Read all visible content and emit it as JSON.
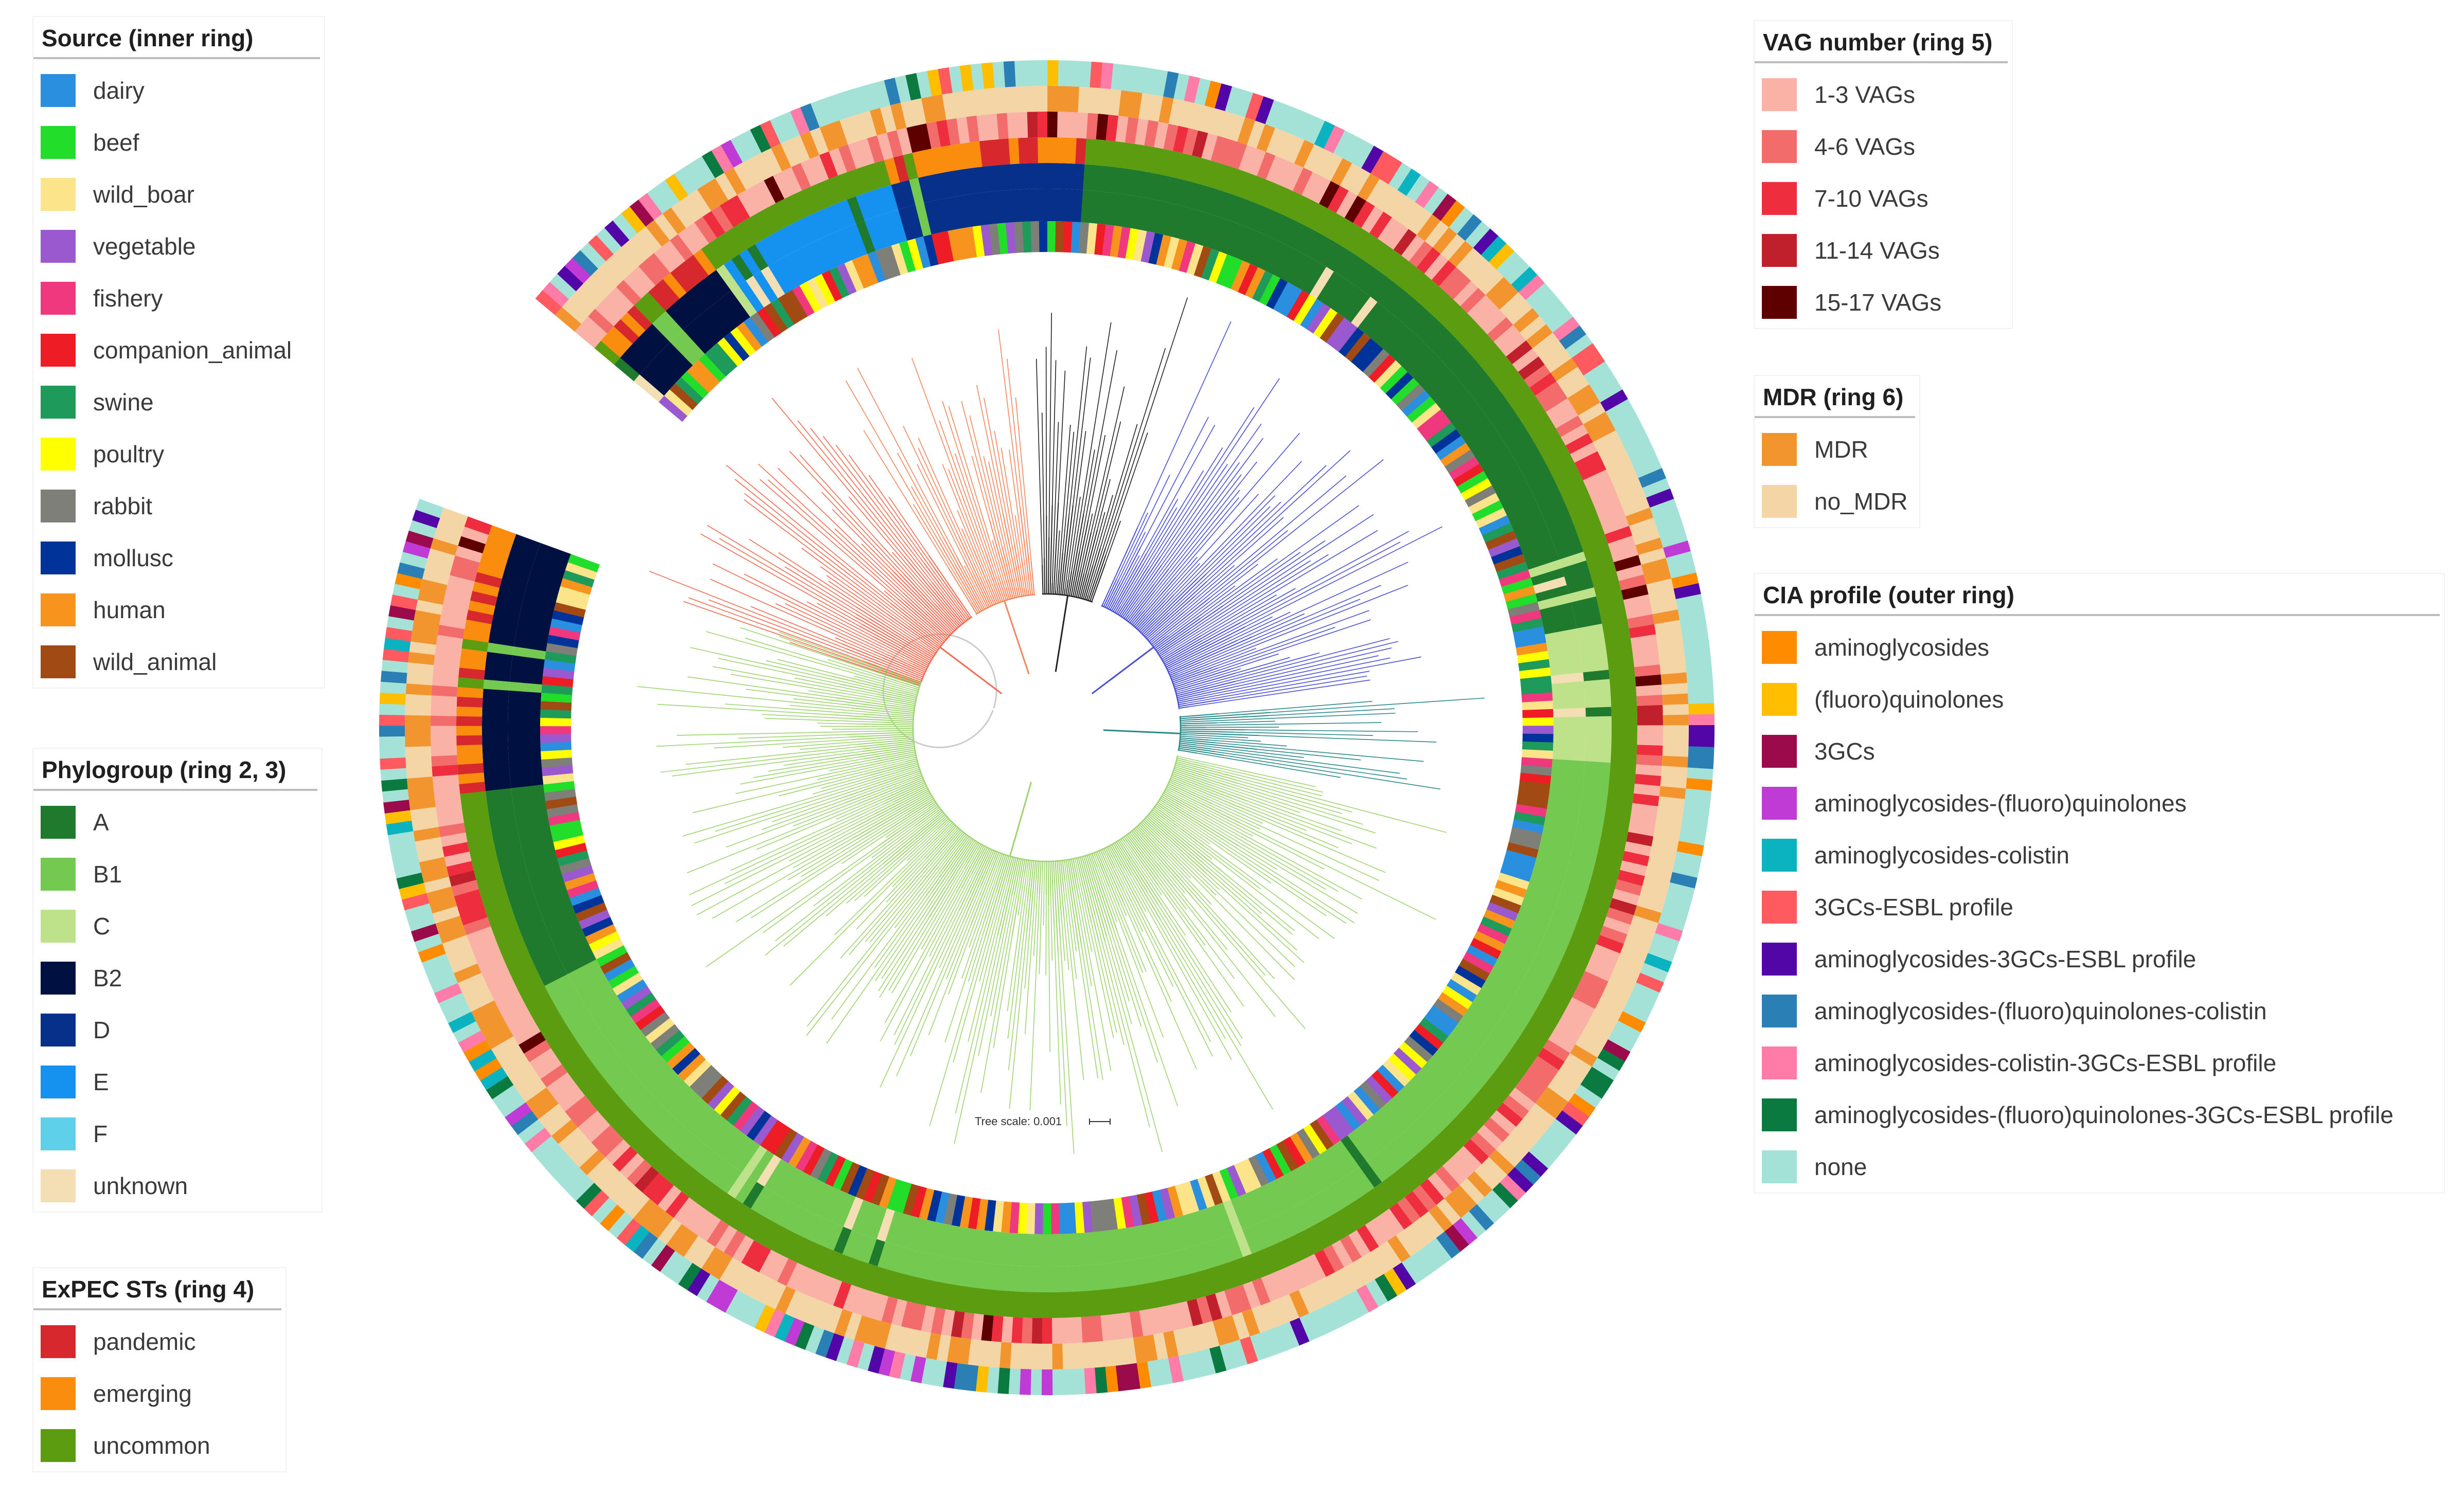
{
  "legends": {
    "source": {
      "title": "Source (inner ring)",
      "items": [
        {
          "label": "dairy",
          "color": "#2b8fe0"
        },
        {
          "label": "beef",
          "color": "#22dd2a"
        },
        {
          "label": "wild_boar",
          "color": "#fce48a"
        },
        {
          "label": "vegetable",
          "color": "#9b59d0"
        },
        {
          "label": "fishery",
          "color": "#f0387e"
        },
        {
          "label": "companion_animal",
          "color": "#ee1c25"
        },
        {
          "label": "swine",
          "color": "#1e9a5a"
        },
        {
          "label": "poultry",
          "color": "#ffff00"
        },
        {
          "label": "rabbit",
          "color": "#7f7f7a"
        },
        {
          "label": "mollusc",
          "color": "#003399"
        },
        {
          "label": "human",
          "color": "#f7941d"
        },
        {
          "label": "wild_animal",
          "color": "#a14a14"
        }
      ]
    },
    "phylogroup": {
      "title": "Phylogroup (ring 2, 3)",
      "items": [
        {
          "label": "A",
          "color": "#1f7a2d"
        },
        {
          "label": "B1",
          "color": "#74c950"
        },
        {
          "label": "C",
          "color": "#bde28a"
        },
        {
          "label": "B2",
          "color": "#001040"
        },
        {
          "label": "D",
          "color": "#06308a"
        },
        {
          "label": "E",
          "color": "#1592f0"
        },
        {
          "label": "F",
          "color": "#5fd0ea"
        },
        {
          "label": "unknown",
          "color": "#f4dfb4"
        }
      ]
    },
    "expec": {
      "title": "ExPEC STs (ring 4)",
      "items": [
        {
          "label": "pandemic",
          "color": "#d6282d"
        },
        {
          "label": "emerging",
          "color": "#fa8c0e"
        },
        {
          "label": "uncommon",
          "color": "#5c9c10"
        }
      ]
    },
    "vag": {
      "title": "VAG number (ring 5)",
      "items": [
        {
          "label": "1-3 VAGs",
          "color": "#fbb2a6"
        },
        {
          "label": "4-6 VAGs",
          "color": "#f26c6c"
        },
        {
          "label": "7-10 VAGs",
          "color": "#ee2e3f"
        },
        {
          "label": "11-14 VAGs",
          "color": "#c0202c"
        },
        {
          "label": "15-17 VAGs",
          "color": "#5f0000"
        }
      ]
    },
    "mdr": {
      "title": "MDR (ring 6)",
      "items": [
        {
          "label": "MDR",
          "color": "#f2952e"
        },
        {
          "label": "no_MDR",
          "color": "#f4d5a6"
        }
      ]
    },
    "cia": {
      "title": "CIA profile (outer ring)",
      "items": [
        {
          "label": "aminoglycosides",
          "color": "#ff8c00"
        },
        {
          "label": "(fluoro)quinolones",
          "color": "#ffbf00"
        },
        {
          "label": "3GCs",
          "color": "#9b0a4b"
        },
        {
          "label": "aminoglycosides-(fluoro)quinolones",
          "color": "#c03ad6"
        },
        {
          "label": "aminoglycosides-colistin",
          "color": "#0bb3c0"
        },
        {
          "label": "3GCs-ESBL profile",
          "color": "#ff5a5f"
        },
        {
          "label": "aminoglycosides-3GCs-ESBL profile",
          "color": "#5206a8"
        },
        {
          "label": "aminoglycosides-(fluoro)quinolones-colistin",
          "color": "#2a7fb4"
        },
        {
          "label": "aminoglycosides-colistin-3GCs-ESBL profile",
          "color": "#ff7ba8"
        },
        {
          "label": "aminoglycosides-(fluoro)quinolones-3GCs-ESBL profile",
          "color": "#0a7a40"
        },
        {
          "label": "none",
          "color": "#a4e2d8"
        }
      ]
    }
  },
  "tree": {
    "scale_label": "Tree scale: 0.001",
    "clade_colors": [
      "#f46a50",
      "#f4865c",
      "#222222",
      "#4a4fd8",
      "#2a8a8a",
      "#9fd470",
      "#cccccc"
    ]
  }
}
